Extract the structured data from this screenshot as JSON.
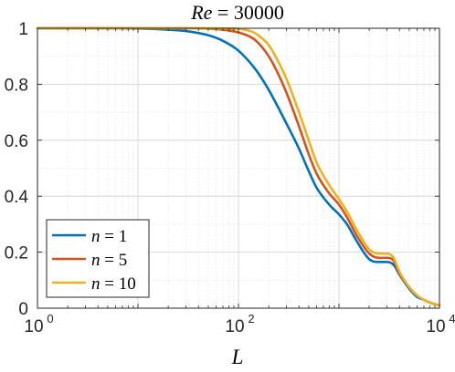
{
  "chart_data": {
    "type": "line",
    "title": "Re = 30000",
    "title_parts": {
      "var": "Re",
      "op": " = ",
      "value": "30000"
    },
    "xlabel": "L",
    "ylabel": "",
    "xscale": "log",
    "xlim": [
      1,
      10000
    ],
    "ylim": [
      0,
      1
    ],
    "grid": true,
    "minor_grid": true,
    "legend_position": "lower-left",
    "xticks": [
      {
        "value": 1,
        "base": "10",
        "exp": "0"
      },
      {
        "value": 100,
        "base": "10",
        "exp": "2"
      },
      {
        "value": 10000,
        "base": "10",
        "exp": "4"
      }
    ],
    "yticks": [
      {
        "value": 0,
        "label": "0"
      },
      {
        "value": 0.2,
        "label": "0.2"
      },
      {
        "value": 0.4,
        "label": "0.4"
      },
      {
        "value": 0.6,
        "label": "0.6"
      },
      {
        "value": 0.8,
        "label": "0.8"
      },
      {
        "value": 1,
        "label": "1"
      }
    ],
    "series": [
      {
        "name": "n = 1",
        "name_parts": {
          "var": "n",
          "op": " = ",
          "value": "1"
        },
        "color": "#0072BD",
        "x": [
          1,
          5,
          10,
          20,
          30,
          50,
          70,
          100,
          150,
          200,
          300,
          400,
          500,
          600,
          800,
          1000,
          1200,
          1500,
          2000,
          2500,
          3000,
          3500,
          4000,
          5000,
          6000,
          7000,
          8000,
          10000
        ],
        "y": [
          1.0,
          1.0,
          0.999,
          0.995,
          0.99,
          0.975,
          0.955,
          0.92,
          0.85,
          0.78,
          0.66,
          0.57,
          0.49,
          0.43,
          0.37,
          0.335,
          0.3,
          0.24,
          0.175,
          0.165,
          0.165,
          0.155,
          0.12,
          0.07,
          0.04,
          0.03,
          0.02,
          0.01
        ]
      },
      {
        "name": "n = 5",
        "name_parts": {
          "var": "n",
          "op": " = ",
          "value": "5"
        },
        "color": "#D95319",
        "x": [
          1,
          10,
          30,
          50,
          70,
          100,
          130,
          150,
          200,
          250,
          300,
          400,
          500,
          600,
          800,
          1000,
          1200,
          1500,
          2000,
          2500,
          3000,
          3500,
          4000,
          5000,
          6000,
          7000,
          8000,
          10000
        ],
        "y": [
          1.0,
          1.0,
          1.0,
          0.999,
          0.995,
          0.985,
          0.97,
          0.955,
          0.9,
          0.835,
          0.77,
          0.65,
          0.55,
          0.48,
          0.41,
          0.37,
          0.325,
          0.26,
          0.195,
          0.18,
          0.18,
          0.17,
          0.125,
          0.075,
          0.045,
          0.03,
          0.02,
          0.01
        ]
      },
      {
        "name": "n = 10",
        "name_parts": {
          "var": "n",
          "op": " = ",
          "value": "10"
        },
        "color": "#EDB120",
        "x": [
          1,
          10,
          50,
          100,
          130,
          150,
          200,
          250,
          300,
          400,
          500,
          600,
          800,
          1000,
          1200,
          1500,
          2000,
          2500,
          3000,
          3500,
          4000,
          5000,
          6000,
          7000,
          8000,
          10000
        ],
        "y": [
          1.0,
          1.0,
          1.0,
          0.998,
          0.99,
          0.98,
          0.94,
          0.88,
          0.82,
          0.7,
          0.6,
          0.52,
          0.44,
          0.39,
          0.345,
          0.28,
          0.21,
          0.195,
          0.195,
          0.18,
          0.13,
          0.075,
          0.045,
          0.03,
          0.02,
          0.01
        ]
      }
    ]
  }
}
